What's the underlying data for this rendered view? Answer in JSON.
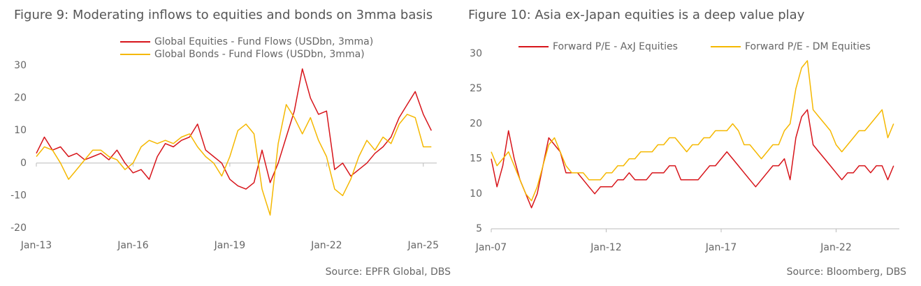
{
  "chart_data": [
    {
      "type": "line",
      "title": "Figure 9: Moderating inflows to equities and bonds on 3mma basis",
      "source": "Source: EPFR Global, DBS",
      "x": [
        "2013-01",
        "2013-04",
        "2013-07",
        "2013-10",
        "2014-01",
        "2014-04",
        "2014-07",
        "2014-10",
        "2015-01",
        "2015-04",
        "2015-07",
        "2015-10",
        "2016-01",
        "2016-04",
        "2016-07",
        "2016-10",
        "2017-01",
        "2017-04",
        "2017-07",
        "2017-10",
        "2018-01",
        "2018-04",
        "2018-07",
        "2018-10",
        "2019-01",
        "2019-04",
        "2019-07",
        "2019-10",
        "2020-01",
        "2020-04",
        "2020-07",
        "2020-10",
        "2021-01",
        "2021-04",
        "2021-07",
        "2021-10",
        "2022-01",
        "2022-04",
        "2022-07",
        "2022-10",
        "2023-01",
        "2023-04",
        "2023-07",
        "2023-10",
        "2024-01",
        "2024-04",
        "2024-07",
        "2024-10",
        "2025-01",
        "2025-04"
      ],
      "series": [
        {
          "name": "Global Equities - Fund Flows (USDbn, 3mma)",
          "color": "#d7141a",
          "values": [
            3,
            8,
            4,
            5,
            2,
            3,
            1,
            2,
            3,
            1,
            4,
            0,
            -3,
            -2,
            -5,
            2,
            6,
            5,
            7,
            8,
            12,
            4,
            2,
            0,
            -5,
            -7,
            -8,
            -6,
            4,
            -6,
            0,
            8,
            16,
            29,
            20,
            15,
            16,
            -2,
            0,
            -4,
            -2,
            0,
            3,
            5,
            8,
            14,
            18,
            22,
            15,
            10
          ]
        },
        {
          "name": "Global Bonds - Fund Flows (USDbn, 3mma)",
          "color": "#f5b800",
          "values": [
            2,
            5,
            4,
            0,
            -5,
            -2,
            1,
            4,
            4,
            2,
            1,
            -2,
            0,
            5,
            7,
            6,
            7,
            6,
            8,
            9,
            5,
            2,
            0,
            -4,
            2,
            10,
            12,
            9,
            -8,
            -16,
            6,
            18,
            14,
            9,
            14,
            7,
            2,
            -8,
            -10,
            -5,
            2,
            7,
            4,
            8,
            6,
            12,
            15,
            14,
            5,
            5
          ]
        }
      ],
      "xlim": [
        "2013-01",
        "2025-06"
      ],
      "ylim": [
        -20,
        30
      ],
      "yticks": [
        -20,
        -10,
        0,
        10,
        20,
        30
      ],
      "xticks": [
        {
          "value": "2013-01",
          "label": "Jan-13"
        },
        {
          "value": "2016-01",
          "label": "Jan-16"
        },
        {
          "value": "2019-01",
          "label": "Jan-19"
        },
        {
          "value": "2022-01",
          "label": "Jan-22"
        },
        {
          "value": "2025-01",
          "label": "Jan-25"
        }
      ]
    },
    {
      "type": "line",
      "title": "Figure 10: Asia ex-Japan equities is a deep value play",
      "source": "Source: Bloomberg, DBS",
      "x": [
        "2007-01",
        "2007-04",
        "2007-07",
        "2007-10",
        "2008-01",
        "2008-04",
        "2008-07",
        "2008-10",
        "2009-01",
        "2009-04",
        "2009-07",
        "2009-10",
        "2010-01",
        "2010-04",
        "2010-07",
        "2010-10",
        "2011-01",
        "2011-04",
        "2011-07",
        "2011-10",
        "2012-01",
        "2012-04",
        "2012-07",
        "2012-10",
        "2013-01",
        "2013-04",
        "2013-07",
        "2013-10",
        "2014-01",
        "2014-04",
        "2014-07",
        "2014-10",
        "2015-01",
        "2015-04",
        "2015-07",
        "2015-10",
        "2016-01",
        "2016-04",
        "2016-07",
        "2016-10",
        "2017-01",
        "2017-04",
        "2017-07",
        "2017-10",
        "2018-01",
        "2018-04",
        "2018-07",
        "2018-10",
        "2019-01",
        "2019-04",
        "2019-07",
        "2019-10",
        "2020-01",
        "2020-04",
        "2020-07",
        "2020-10",
        "2021-01",
        "2021-04",
        "2021-07",
        "2021-10",
        "2022-01",
        "2022-04",
        "2022-07",
        "2022-10",
        "2023-01",
        "2023-04",
        "2023-07",
        "2023-10",
        "2024-01",
        "2024-04",
        "2024-07"
      ],
      "series": [
        {
          "name": "Forward P/E - AxJ Equities",
          "color": "#d7141a",
          "values": [
            15,
            11,
            14,
            19,
            15,
            12,
            10,
            8,
            10,
            14,
            18,
            17,
            16,
            13,
            13,
            13,
            12,
            11,
            10,
            11,
            11,
            11,
            12,
            12,
            13,
            12,
            12,
            12,
            13,
            13,
            13,
            14,
            14,
            12,
            12,
            12,
            12,
            13,
            14,
            14,
            15,
            16,
            15,
            14,
            13,
            12,
            11,
            12,
            13,
            14,
            14,
            15,
            12,
            18,
            21,
            22,
            17,
            16,
            15,
            14,
            13,
            12,
            13,
            13,
            14,
            14,
            13,
            14,
            14,
            12,
            14
          ]
        },
        {
          "name": "Forward P/E - DM Equities",
          "color": "#f5b800",
          "values": [
            16,
            14,
            15,
            16,
            14,
            12,
            10,
            9,
            11,
            14,
            17,
            18,
            16,
            14,
            13,
            13,
            13,
            12,
            12,
            12,
            13,
            13,
            14,
            14,
            15,
            15,
            16,
            16,
            16,
            17,
            17,
            18,
            18,
            17,
            16,
            17,
            17,
            18,
            18,
            19,
            19,
            19,
            20,
            19,
            17,
            17,
            16,
            15,
            16,
            17,
            17,
            19,
            20,
            25,
            28,
            29,
            22,
            21,
            20,
            19,
            17,
            16,
            17,
            18,
            19,
            19,
            20,
            21,
            22,
            18,
            20
          ]
        }
      ],
      "xlim": [
        "2007-01",
        "2024-10"
      ],
      "ylim": [
        5,
        30
      ],
      "yticks": [
        5,
        10,
        15,
        20,
        25,
        30
      ],
      "xticks": [
        {
          "value": "2007-01",
          "label": "Jan-07"
        },
        {
          "value": "2012-01",
          "label": "Jan-12"
        },
        {
          "value": "2017-01",
          "label": "Jan-17"
        },
        {
          "value": "2022-01",
          "label": "Jan-22"
        }
      ]
    }
  ]
}
